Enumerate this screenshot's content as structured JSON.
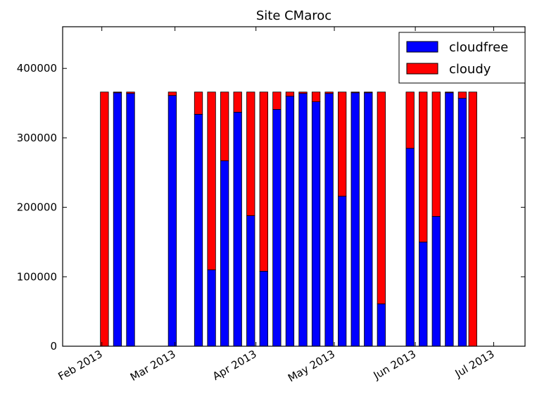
{
  "chart_data": {
    "type": "bar",
    "stacked": true,
    "title": "Site CMaroc",
    "xlabel": "",
    "ylabel": "",
    "x_axis": {
      "kind": "date",
      "range": [
        "2013-01-17",
        "2013-07-13"
      ],
      "ticks": [
        {
          "date": "2013-02-01",
          "label": "Feb 2013"
        },
        {
          "date": "2013-03-01",
          "label": "Mar 2013"
        },
        {
          "date": "2013-04-01",
          "label": "Apr 2013"
        },
        {
          "date": "2013-05-01",
          "label": "May 2013"
        },
        {
          "date": "2013-06-01",
          "label": "Jun 2013"
        },
        {
          "date": "2013-07-01",
          "label": "Jul 2013"
        }
      ]
    },
    "y_axis": {
      "range": [
        0,
        460000
      ],
      "ticks": [
        0,
        100000,
        200000,
        300000,
        400000
      ],
      "tick_labels": [
        "0",
        "100000",
        "200000",
        "300000",
        "400000"
      ]
    },
    "legend": {
      "position": "top-right"
    },
    "series": [
      {
        "name": "cloudfree",
        "color": "#0000ff"
      },
      {
        "name": "cloudy",
        "color": "#ff0000"
      }
    ],
    "bars": [
      {
        "date": "2013-02-02",
        "cloudfree": 0,
        "cloudy": 366000
      },
      {
        "date": "2013-02-07",
        "cloudfree": 365000,
        "cloudy": 1000
      },
      {
        "date": "2013-02-12",
        "cloudfree": 364000,
        "cloudy": 2000
      },
      {
        "date": "2013-02-28",
        "cloudfree": 361000,
        "cloudy": 5000
      },
      {
        "date": "2013-03-10",
        "cloudfree": 334000,
        "cloudy": 32000
      },
      {
        "date": "2013-03-15",
        "cloudfree": 110000,
        "cloudy": 256000
      },
      {
        "date": "2013-03-20",
        "cloudfree": 267000,
        "cloudy": 99000
      },
      {
        "date": "2013-03-25",
        "cloudfree": 337000,
        "cloudy": 29000
      },
      {
        "date": "2013-03-30",
        "cloudfree": 188000,
        "cloudy": 178000
      },
      {
        "date": "2013-04-04",
        "cloudfree": 108000,
        "cloudy": 258000
      },
      {
        "date": "2013-04-09",
        "cloudfree": 341000,
        "cloudy": 25000
      },
      {
        "date": "2013-04-14",
        "cloudfree": 360000,
        "cloudy": 6000
      },
      {
        "date": "2013-04-19",
        "cloudfree": 364000,
        "cloudy": 2000
      },
      {
        "date": "2013-04-24",
        "cloudfree": 352000,
        "cloudy": 14000
      },
      {
        "date": "2013-04-29",
        "cloudfree": 364000,
        "cloudy": 2000
      },
      {
        "date": "2013-05-04",
        "cloudfree": 216000,
        "cloudy": 150000
      },
      {
        "date": "2013-05-09",
        "cloudfree": 365000,
        "cloudy": 1000
      },
      {
        "date": "2013-05-14",
        "cloudfree": 365000,
        "cloudy": 1000
      },
      {
        "date": "2013-05-19",
        "cloudfree": 61000,
        "cloudy": 305000
      },
      {
        "date": "2013-05-30",
        "cloudfree": 285000,
        "cloudy": 81000
      },
      {
        "date": "2013-06-04",
        "cloudfree": 150000,
        "cloudy": 216000
      },
      {
        "date": "2013-06-09",
        "cloudfree": 187000,
        "cloudy": 179000
      },
      {
        "date": "2013-06-14",
        "cloudfree": 365000,
        "cloudy": 1000
      },
      {
        "date": "2013-06-19",
        "cloudfree": 357000,
        "cloudy": 9000
      },
      {
        "date": "2013-06-23",
        "cloudfree": 0,
        "cloudy": 366000
      }
    ]
  }
}
